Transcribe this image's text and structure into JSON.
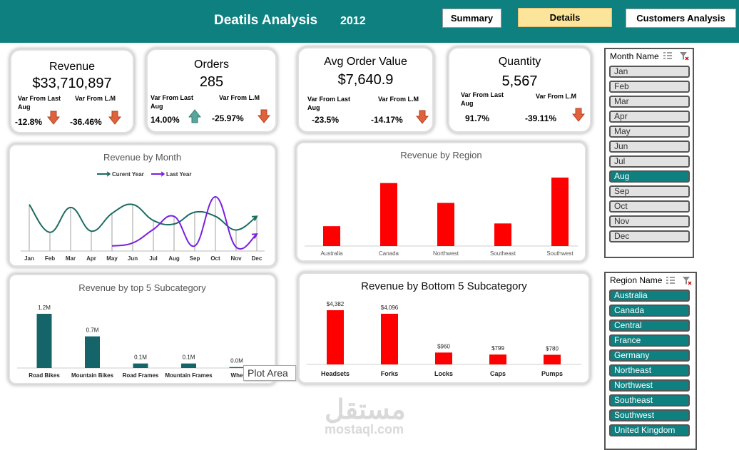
{
  "header": {
    "title": "Deatils Analysis",
    "year": "2012",
    "buttons": {
      "summary": "Summary",
      "details": "Details",
      "customers": "Customers Analysis"
    },
    "colors": {
      "bar": "#0e8080",
      "active_button": "#fde49b"
    }
  },
  "kpis": {
    "revenue": {
      "title": "Revenue",
      "value": "$33,710,897",
      "lbl1": "Var From Last Aug",
      "lbl2": "Var From L.M",
      "v1": "-12.8%",
      "v2": "-36.46%"
    },
    "orders": {
      "title": "Orders",
      "value": "285",
      "lbl1": "Var From Last Aug",
      "lbl2": "Var From L.M",
      "v1": "14.00%",
      "v2": "-25.97%"
    },
    "aov": {
      "title": "Avg Order Value",
      "value": "$7,640.9",
      "lbl1": "Var From Last Aug",
      "lbl2": "Var From L.M",
      "v1": "-23.5%",
      "v2": "-14.17%"
    },
    "quantity": {
      "title": "Quantity",
      "value": "5,567",
      "lbl1": "Var From Last Aug",
      "lbl2": "Var From L.M",
      "v1": "91.7%",
      "v2": "-39.11%"
    }
  },
  "chart_data": [
    {
      "type": "line",
      "title": "Revenue by Month",
      "categories": [
        "Jan",
        "Feb",
        "Mar",
        "Apr",
        "May",
        "Jun",
        "Jul",
        "Aug",
        "Sep",
        "Oct",
        "Nov",
        "Dec"
      ],
      "series": [
        {
          "name": "Curent Year",
          "color": "#1b6b60",
          "values": [
            0.75,
            0.28,
            0.7,
            0.3,
            0.6,
            0.75,
            0.48,
            0.42,
            0.62,
            0.55,
            0.32,
            0.55
          ]
        },
        {
          "name": "Last Year",
          "color": "#7a1fe0",
          "values": [
            null,
            null,
            null,
            null,
            0.05,
            0.1,
            0.33,
            0.55,
            0.05,
            0.88,
            0.03,
            0.25
          ]
        }
      ],
      "legend": "top",
      "grid": false
    },
    {
      "type": "bar",
      "title": "Revenue by Region",
      "categories": [
        "Australia",
        "Canada",
        "Northwest",
        "Southeast",
        "Southwest"
      ],
      "values": [
        0.29,
        0.92,
        0.63,
        0.33,
        1.0
      ],
      "color": "#ff0000"
    },
    {
      "type": "bar",
      "title": "Revenue by top 5 Subcategory",
      "categories": [
        "Road Bikes",
        "Mountain Bikes",
        "Road Frames",
        "Mountain Frames",
        "Wheels"
      ],
      "category_labels_shown": [
        "Road Bikes",
        "Mountain Bikes",
        "Road Frames",
        "Mountain Frames",
        "Whe"
      ],
      "values": [
        1.2,
        0.7,
        0.1,
        0.1,
        0.02
      ],
      "data_labels": [
        "1.2M",
        "0.7M",
        "0.1M",
        "0.1M",
        "0.0M"
      ],
      "color": "#14646a"
    },
    {
      "type": "bar",
      "title": "Revenue by Bottom 5 Subcategory",
      "categories": [
        "Headsets",
        "Forks",
        "Locks",
        "Caps",
        "Pumps"
      ],
      "values": [
        4382,
        4096,
        960,
        799,
        780
      ],
      "data_labels": [
        "$4,382",
        "$4,096",
        "$960",
        "$799",
        "$780"
      ],
      "color": "#ff0000"
    }
  ],
  "slicers": {
    "month": {
      "title": "Month Name",
      "items": [
        "Jan",
        "Feb",
        "Mar",
        "Apr",
        "May",
        "Jun",
        "Jul",
        "Aug",
        "Sep",
        "Oct",
        "Nov",
        "Dec"
      ],
      "selected": [
        "Aug"
      ]
    },
    "region": {
      "title": "Region Name",
      "items": [
        "Australia",
        "Canada",
        "Central",
        "France",
        "Germany",
        "Northeast",
        "Northwest",
        "Southeast",
        "Southwest",
        "United Kingdom"
      ],
      "selected": [
        "Australia",
        "Canada",
        "Central",
        "France",
        "Germany",
        "Northeast",
        "Northwest",
        "Southeast",
        "Southwest",
        "United Kingdom"
      ]
    }
  },
  "tooltip": "Plot Area",
  "watermark": {
    "arabic": "مستقل",
    "latin": "mostaql.com"
  }
}
